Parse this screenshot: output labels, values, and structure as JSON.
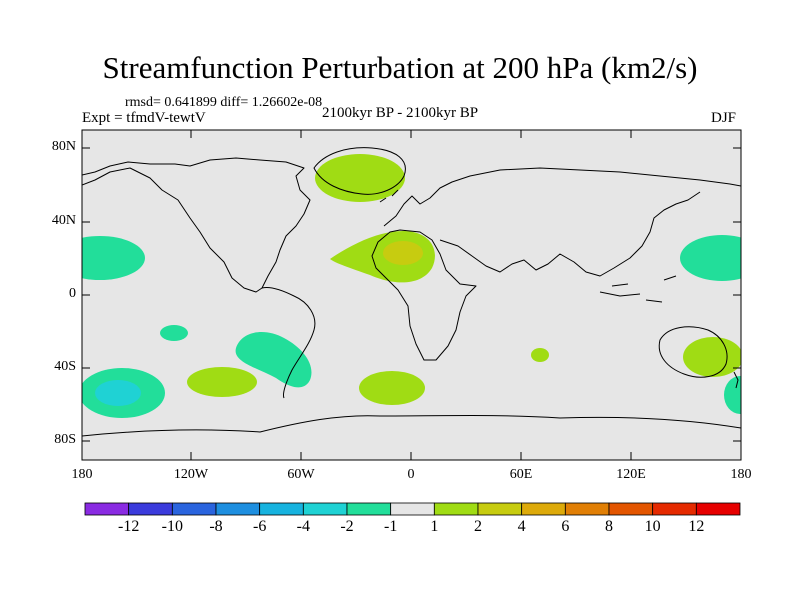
{
  "header": {
    "title": "Streamfunction Perturbation at 200 hPa (km2/s)",
    "stats": "rmsd= 0.641899 diff= 1.26602e-08",
    "expt": "Expt = tfmdV-tewtV",
    "period": "2100kyr BP - 2100kyr BP",
    "season": "DJF"
  },
  "axes": {
    "lat_labels": [
      "80N",
      "40N",
      "0",
      "40S",
      "80S"
    ],
    "lon_labels": [
      "180",
      "120W",
      "60W",
      "0",
      "60E",
      "120E",
      "180"
    ]
  },
  "colorbar": {
    "colors": [
      "#8a2be2",
      "#3b3bdc",
      "#2a64de",
      "#1e8fe0",
      "#17b3df",
      "#1fd2d4",
      "#22de9a",
      "#e6e6e6",
      "#a0dc14",
      "#c7cc10",
      "#ddaa0a",
      "#e17f05",
      "#e35500",
      "#e52a00",
      "#e60000"
    ],
    "labels": [
      "-12",
      "-10",
      "-8",
      "-6",
      "-4",
      "-2",
      "-1",
      "1",
      "2",
      "4",
      "6",
      "8",
      "10",
      "12"
    ]
  },
  "map_colors": {
    "ocean_land": "#e6e6e6",
    "green_teal": "#22de9a",
    "cyan": "#1fd2d4",
    "lime": "#a0dc14",
    "yellow_green": "#c7cc10"
  }
}
